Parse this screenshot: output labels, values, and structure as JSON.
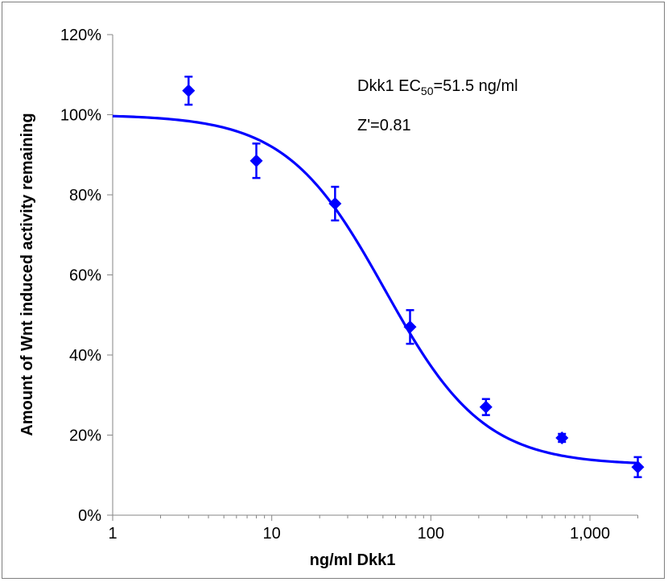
{
  "chart_data": {
    "type": "scatter",
    "title": "",
    "xlabel": "ng/ml Dkk1",
    "ylabel": "Amount of Wnt induced activity remaining",
    "x_scale": "log",
    "xlim": [
      1,
      2000
    ],
    "ylim": [
      0,
      120
    ],
    "x_ticks": [
      {
        "value": 1,
        "label": "1"
      },
      {
        "value": 10,
        "label": "10"
      },
      {
        "value": 100,
        "label": "100"
      },
      {
        "value": 1000,
        "label": "1,000"
      }
    ],
    "y_ticks": [
      {
        "value": 0,
        "label": "0%"
      },
      {
        "value": 20,
        "label": "20%"
      },
      {
        "value": 40,
        "label": "40%"
      },
      {
        "value": 60,
        "label": "60%"
      },
      {
        "value": 80,
        "label": "80%"
      },
      {
        "value": 100,
        "label": "100%"
      },
      {
        "value": 120,
        "label": "120%"
      }
    ],
    "grid": false,
    "color": "#0000ff",
    "points": [
      {
        "x": 3,
        "y": 106,
        "err": 3.5
      },
      {
        "x": 8,
        "y": 88.5,
        "err": 4.3
      },
      {
        "x": 25,
        "y": 77.8,
        "err": 4.2
      },
      {
        "x": 74,
        "y": 47,
        "err": 4.2
      },
      {
        "x": 222,
        "y": 27,
        "err": 2
      },
      {
        "x": 667,
        "y": 19.3,
        "err": 1
      },
      {
        "x": 2000,
        "y": 12,
        "err": 2.5
      }
    ],
    "fit": {
      "bottom": 12.5,
      "top": 100,
      "ec50": 51.5,
      "hill": 1.4
    },
    "annotations": {
      "ec50_prefix": "Dkk1 EC",
      "ec50_sub": "50",
      "ec50_value": "=51.5 ng/ml",
      "z_prime": "Z'=0.81"
    }
  }
}
